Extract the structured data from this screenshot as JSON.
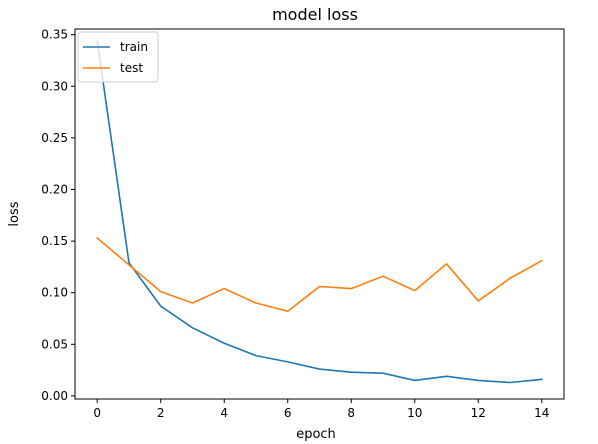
{
  "chart_data": {
    "type": "line",
    "title": "model loss",
    "xlabel": "epoch",
    "ylabel": "loss",
    "xlim": [
      -0.7,
      14.7
    ],
    "ylim": [
      -0.003,
      0.3555
    ],
    "xticks": [
      0,
      2,
      4,
      6,
      8,
      10,
      12,
      14
    ],
    "yticks": [
      0.0,
      0.05,
      0.1,
      0.15,
      0.2,
      0.25,
      0.3,
      0.35
    ],
    "ytick_labels": [
      "0.00",
      "0.05",
      "0.10",
      "0.15",
      "0.20",
      "0.25",
      "0.30",
      "0.35"
    ],
    "grid": false,
    "legend_position": "top-left",
    "x": [
      0,
      1,
      2,
      3,
      4,
      5,
      6,
      7,
      8,
      9,
      10,
      11,
      12,
      13,
      14
    ],
    "series": [
      {
        "name": "train",
        "color": "#1f77b4",
        "values": [
          0.344,
          0.129,
          0.087,
          0.066,
          0.051,
          0.039,
          0.033,
          0.026,
          0.023,
          0.022,
          0.015,
          0.019,
          0.015,
          0.013,
          0.016
        ]
      },
      {
        "name": "test",
        "color": "#ff7f0e",
        "values": [
          0.153,
          0.127,
          0.101,
          0.09,
          0.104,
          0.09,
          0.082,
          0.106,
          0.104,
          0.116,
          0.102,
          0.128,
          0.092,
          0.114,
          0.131
        ]
      }
    ]
  }
}
